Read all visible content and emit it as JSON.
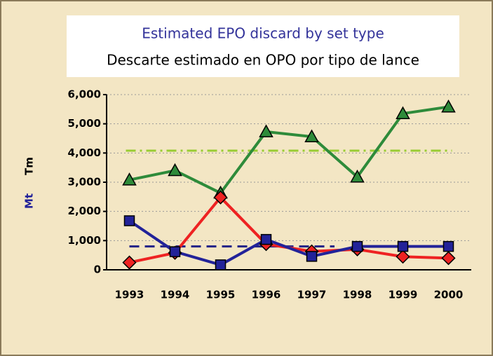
{
  "chart_data": {
    "type": "line",
    "title": "Estimated EPO discard by set type",
    "subtitle": "Descarte estimado en OPO por tipo de lance",
    "y_labels": [
      "Mt",
      "Tm"
    ],
    "categories": [
      "1993",
      "1994",
      "1995",
      "1996",
      "1997",
      "1998",
      "1999",
      "2000"
    ],
    "series": [
      {
        "color": "#2e8b3a",
        "marker": "triangle",
        "values": [
          3080,
          3400,
          2630,
          4730,
          4560,
          3180,
          5350,
          5580
        ]
      },
      {
        "color": "#ee2222",
        "marker": "diamond",
        "values": [
          250,
          580,
          2480,
          880,
          630,
          700,
          450,
          400
        ]
      },
      {
        "color": "#222299",
        "marker": "square",
        "values": [
          1680,
          620,
          170,
          1040,
          460,
          800,
          800,
          800
        ]
      }
    ],
    "ref_lines": [
      {
        "value": 4080,
        "color": "#99cc33",
        "dash": "14 6 3 6"
      },
      {
        "value": 800,
        "color": "#222288",
        "dash": "14 8"
      }
    ],
    "ylim": [
      0,
      6000
    ],
    "yticks": [
      0,
      {
        "value": 1000,
        "label": "1,000"
      },
      {
        "value": 2000,
        "label": "2,000"
      },
      {
        "value": 3000,
        "label": "3,000"
      },
      {
        "value": 4000,
        "label": "4,000"
      },
      {
        "value": 5000,
        "label": "5,000"
      },
      {
        "value": 6000,
        "label": "6,000"
      }
    ],
    "grid": true
  }
}
